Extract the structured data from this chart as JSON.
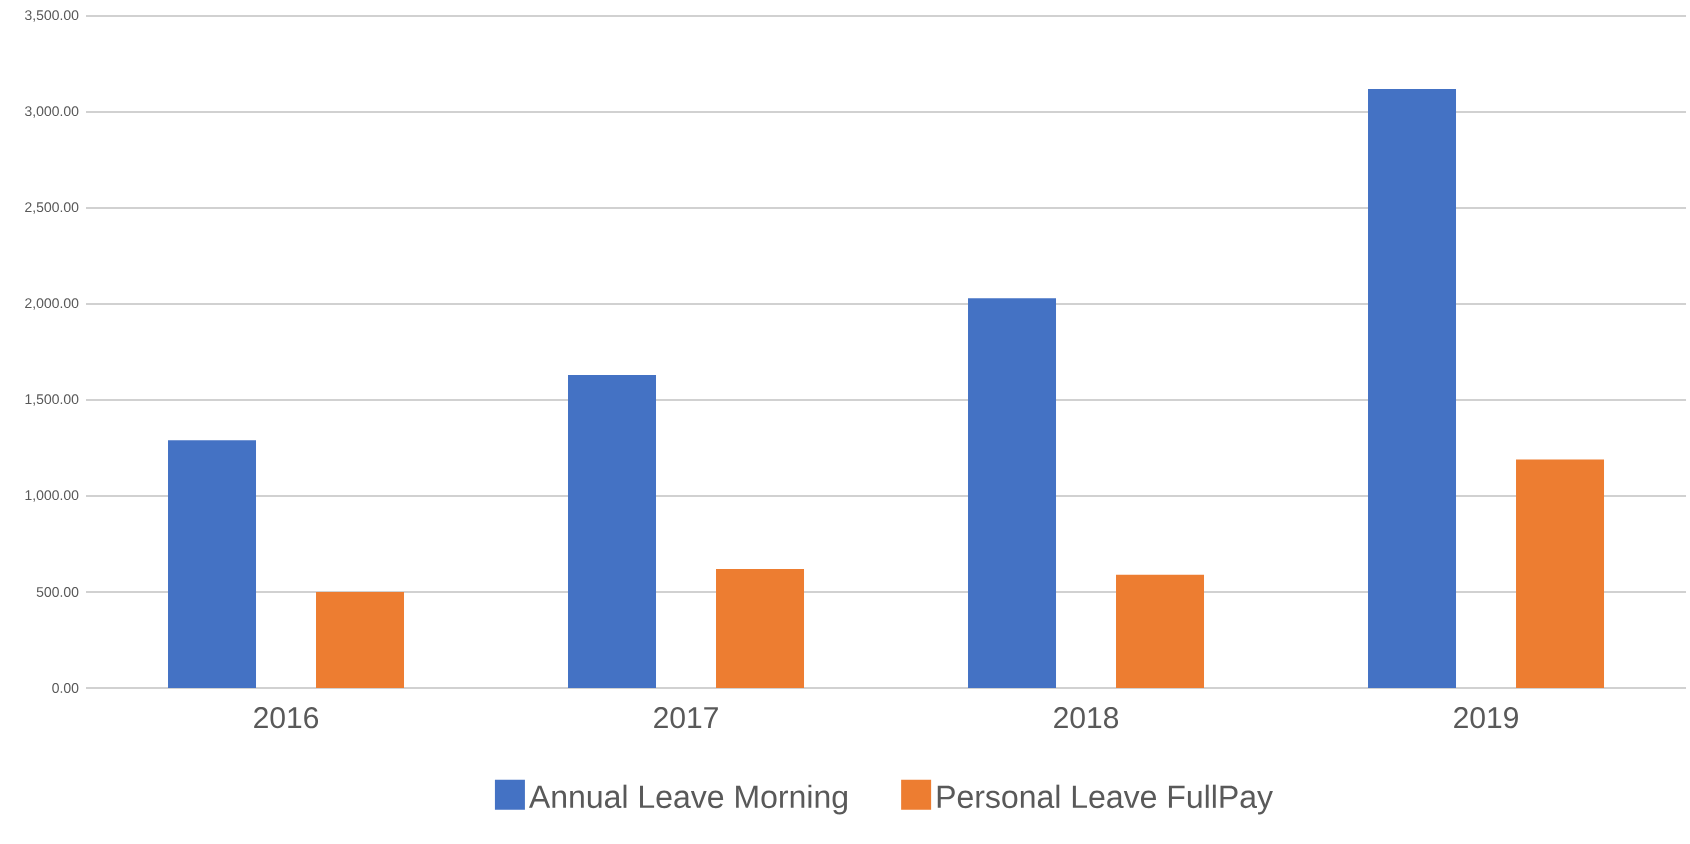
{
  "chart_data": {
    "type": "bar",
    "categories": [
      "2016",
      "2017",
      "2018",
      "2019"
    ],
    "series": [
      {
        "name": "Annual Leave Morning",
        "color": "#4472c4",
        "values": [
          1290,
          1630,
          2030,
          3120
        ]
      },
      {
        "name": "Personal Leave FullPay",
        "color": "#ed7d31",
        "values": [
          500,
          620,
          590,
          1190
        ]
      }
    ],
    "ylim": [
      0,
      3500
    ],
    "yticks": [
      {
        "value": 0,
        "label": "0.00"
      },
      {
        "value": 500,
        "label": "500.00"
      },
      {
        "value": 1000,
        "label": "1,000.00"
      },
      {
        "value": 1500,
        "label": "1,500.00"
      },
      {
        "value": 2000,
        "label": "2,000.00"
      },
      {
        "value": 2500,
        "label": "2,500.00"
      },
      {
        "value": 3000,
        "label": "3,000.00"
      },
      {
        "value": 3500,
        "label": "3,500.00"
      }
    ],
    "grid": "y",
    "legend": "bottom"
  }
}
